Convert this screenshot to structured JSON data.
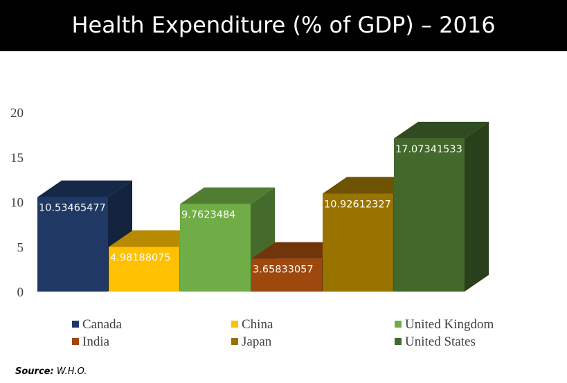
{
  "title": "Health Expenditure (% of GDP) – 2016",
  "source": {
    "label": "Source:",
    "value": "W.H.O."
  },
  "chart_data": {
    "type": "bar",
    "title": "Health Expenditure (% of GDP) – 2016",
    "categories": [
      "Canada",
      "China",
      "United Kingdom",
      "India",
      "Japan",
      "United States"
    ],
    "values": [
      10.53465477,
      4.98188075,
      9.7623484,
      3.65833057,
      10.92612327,
      17.07341533
    ],
    "value_labels": [
      "10.53465477",
      "4.98188075",
      "9.7623484",
      "3.65833057",
      "10.92612327",
      "17.07341533"
    ],
    "colors": [
      "#1f3864",
      "#ffc000",
      "#70ad47",
      "#9e480e",
      "#997300",
      "#43682b"
    ],
    "y_ticks": [
      0,
      5,
      10,
      15,
      20
    ],
    "ylim": [
      0,
      20
    ],
    "grid": false,
    "style": "3d-column",
    "legend_position": "bottom"
  }
}
